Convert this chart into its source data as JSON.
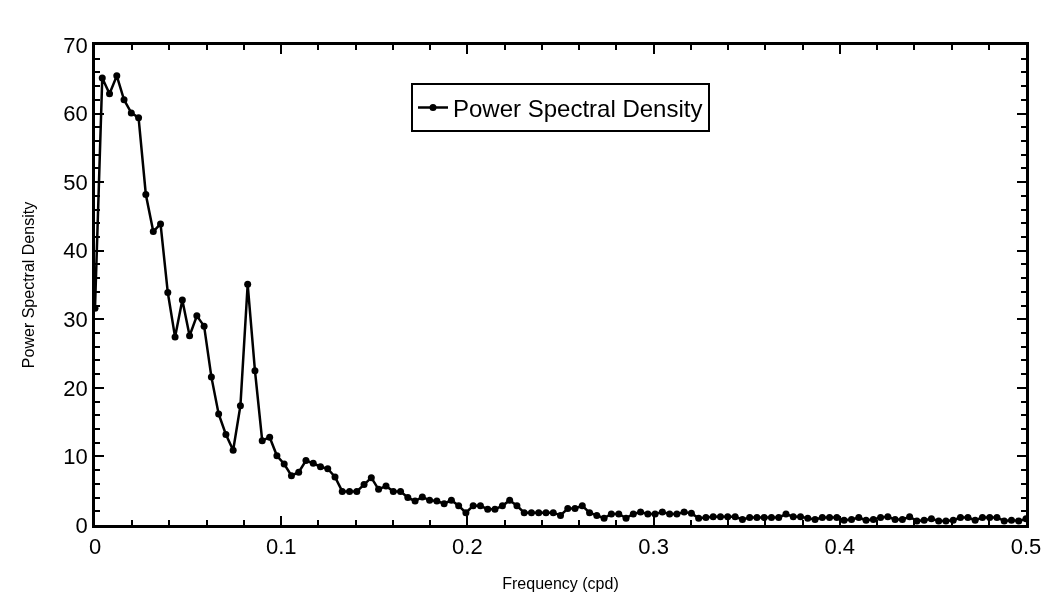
{
  "chart_data": {
    "type": "line",
    "xlabel": "Frequency (cpd)",
    "ylabel": "Power Spectral Density",
    "x": [
      0,
      0.0039,
      0.0078,
      0.0117,
      0.0156,
      0.0195,
      0.0234,
      0.0273,
      0.0313,
      0.0352,
      0.0391,
      0.043,
      0.0469,
      0.0508,
      0.0547,
      0.0586,
      0.0625,
      0.0664,
      0.0703,
      0.0742,
      0.0781,
      0.082,
      0.0859,
      0.0898,
      0.0938,
      0.0977,
      0.1016,
      0.1055,
      0.1094,
      0.1133,
      0.1172,
      0.1211,
      0.125,
      0.1289,
      0.1328,
      0.1367,
      0.1406,
      0.1445,
      0.1484,
      0.1523,
      0.1563,
      0.1602,
      0.1641,
      0.168,
      0.1719,
      0.1758,
      0.1797,
      0.1836,
      0.1875,
      0.1914,
      0.1953,
      0.1992,
      0.2031,
      0.207,
      0.2109,
      0.2148,
      0.2188,
      0.2227,
      0.2266,
      0.2305,
      0.2344,
      0.2383,
      0.2422,
      0.2461,
      0.25,
      0.2539,
      0.2578,
      0.2617,
      0.2656,
      0.2695,
      0.2734,
      0.2773,
      0.2813,
      0.2852,
      0.2891,
      0.293,
      0.2969,
      0.3008,
      0.3047,
      0.3086,
      0.3125,
      0.3164,
      0.3203,
      0.3242,
      0.3281,
      0.332,
      0.3359,
      0.3398,
      0.3438,
      0.3477,
      0.3516,
      0.3555,
      0.3594,
      0.3633,
      0.3672,
      0.3711,
      0.375,
      0.3789,
      0.3828,
      0.3867,
      0.3906,
      0.3945,
      0.3984,
      0.4023,
      0.4063,
      0.4102,
      0.4141,
      0.418,
      0.4219,
      0.4258,
      0.4297,
      0.4336,
      0.4375,
      0.4414,
      0.4453,
      0.4492,
      0.4531,
      0.457,
      0.4609,
      0.4648,
      0.4688,
      0.4727,
      0.4766,
      0.4805,
      0.4844,
      0.4883,
      0.4922,
      0.4961,
      0.5
    ],
    "series": [
      {
        "name": "Power Spectral Density",
        "color": "#000000",
        "values": [
          31.6,
          65.2,
          62.9,
          65.5,
          62.0,
          60.1,
          59.4,
          48.2,
          42.8,
          43.9,
          33.9,
          27.4,
          32.8,
          27.6,
          30.5,
          29.0,
          21.6,
          16.2,
          13.2,
          10.9,
          17.4,
          35.1,
          22.5,
          12.3,
          12.8,
          10.1,
          8.9,
          7.2,
          7.7,
          9.4,
          9.0,
          8.5,
          8.2,
          7.0,
          4.9,
          4.9,
          4.9,
          5.9,
          6.9,
          5.2,
          5.7,
          4.9,
          4.9,
          4.0,
          3.5,
          4.1,
          3.6,
          3.5,
          3.1,
          3.6,
          2.8,
          1.8,
          2.8,
          2.8,
          2.3,
          2.3,
          2.8,
          3.6,
          2.8,
          1.8,
          1.8,
          1.8,
          1.8,
          1.8,
          1.4,
          2.4,
          2.4,
          2.8,
          1.8,
          1.4,
          1.0,
          1.6,
          1.6,
          1.0,
          1.6,
          1.9,
          1.6,
          1.6,
          1.9,
          1.6,
          1.6,
          1.9,
          1.7,
          1.0,
          1.1,
          1.2,
          1.2,
          1.2,
          1.2,
          0.8,
          1.1,
          1.1,
          1.1,
          1.1,
          1.1,
          1.6,
          1.2,
          1.2,
          1.0,
          0.8,
          1.1,
          1.1,
          1.1,
          0.7,
          0.8,
          1.1,
          0.7,
          0.8,
          1.1,
          1.2,
          0.8,
          0.8,
          1.2,
          0.6,
          0.7,
          0.9,
          0.6,
          0.6,
          0.7,
          1.1,
          1.1,
          0.7,
          1.1,
          1.1,
          1.1,
          0.6,
          0.7,
          0.6,
          0.9
        ]
      }
    ],
    "xlim": [
      0,
      0.5
    ],
    "xticks": [
      0,
      0.1,
      0.2,
      0.3,
      0.4,
      0.5
    ],
    "ylim": [
      0,
      70
    ],
    "yticks": [
      0,
      10,
      20,
      30,
      40,
      50,
      60,
      70
    ],
    "legend": "top",
    "marker": "circle",
    "line_style": "solid"
  }
}
